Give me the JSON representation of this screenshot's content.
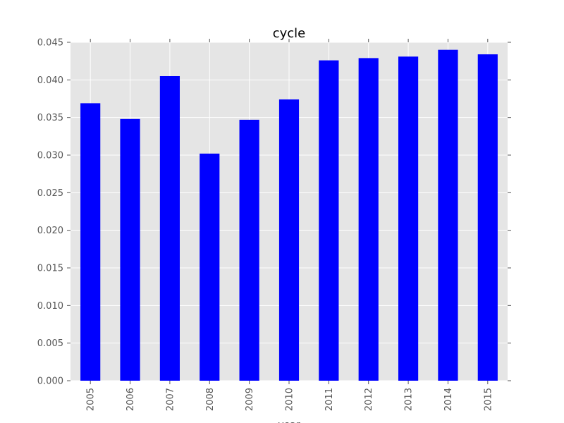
{
  "chart_data": {
    "type": "bar",
    "title": "cycle",
    "xlabel": "year",
    "ylabel": "",
    "categories": [
      "2005",
      "2006",
      "2007",
      "2008",
      "2009",
      "2010",
      "2011",
      "2012",
      "2013",
      "2014",
      "2015"
    ],
    "values": [
      0.0369,
      0.0348,
      0.0405,
      0.0302,
      0.0347,
      0.0374,
      0.0426,
      0.0429,
      0.0431,
      0.044,
      0.0434
    ],
    "ylim": [
      0,
      0.045
    ],
    "yticks": [
      "0.000",
      "0.005",
      "0.010",
      "0.015",
      "0.020",
      "0.025",
      "0.030",
      "0.035",
      "0.040",
      "0.045"
    ],
    "grid": true,
    "legend": "none",
    "colors": {
      "bar": "#0000ff",
      "plot_background": "#e5e5e5",
      "grid": "#ffffff"
    }
  }
}
